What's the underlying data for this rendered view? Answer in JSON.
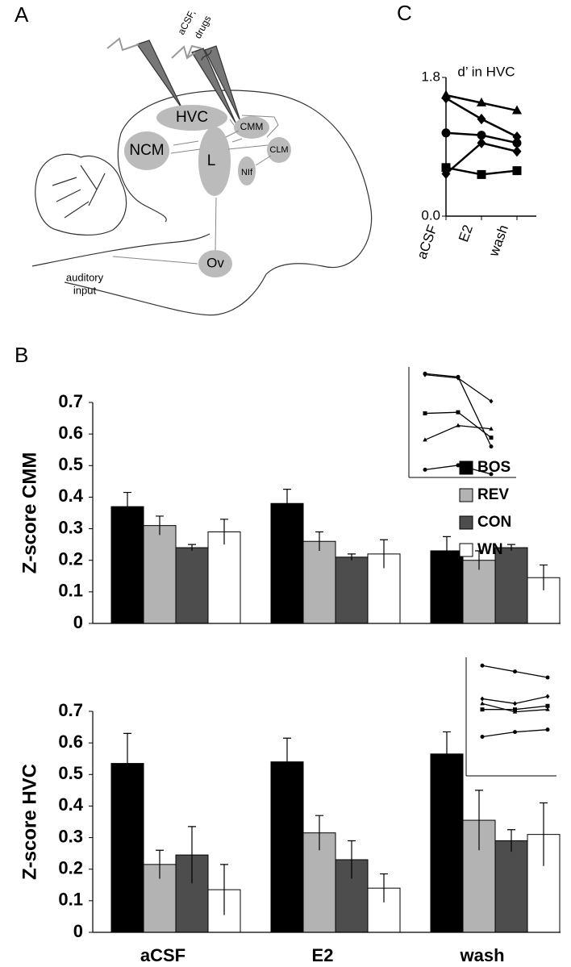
{
  "panel_labels": [
    "A",
    "B",
    "C"
  ],
  "diagram": {
    "labels": {
      "hvc": "HVC",
      "ncm": "NCM",
      "l": "L",
      "cmm": "CMM",
      "clm": "CLM",
      "nif": "NIf",
      "ov": "Ov",
      "auditory": "auditory",
      "input": "input",
      "acsf": "aCSF,",
      "drugs": "drugs"
    }
  },
  "chart_data": [
    {
      "type": "line",
      "title": "d’ in HVC",
      "categories": [
        "aCSF",
        "E2",
        "wash"
      ],
      "ylim": [
        0,
        1.8
      ],
      "yticks": [
        {
          "value": 0,
          "label": "0.0"
        },
        1.8
      ],
      "color": "#000000",
      "series": [
        {
          "marker": "triangle",
          "values": [
            1.57,
            1.47,
            1.37
          ]
        },
        {
          "marker": "diamond",
          "values": [
            1.53,
            1.26,
            1.03
          ]
        },
        {
          "marker": "circle",
          "values": [
            1.08,
            1.05,
            0.95
          ]
        },
        {
          "marker": "diamond",
          "values": [
            0.55,
            0.95,
            0.84
          ]
        },
        {
          "marker": "square",
          "values": [
            0.63,
            0.54,
            0.59
          ]
        }
      ]
    },
    {
      "type": "bar",
      "ylabel": "Z-score CMM",
      "categories": [
        null,
        null,
        null
      ],
      "ylim": [
        0,
        0.7
      ],
      "yticks": [
        0,
        0.1,
        0.2,
        0.3,
        0.4,
        0.5,
        0.6,
        0.7
      ],
      "legend": "right",
      "series": [
        {
          "name": "BOS",
          "color": "#000000",
          "values": [
            0.37,
            0.38,
            0.23
          ],
          "errors": [
            0.045,
            0.045,
            0.045
          ]
        },
        {
          "name": "REV",
          "color": "#b3b3b3",
          "values": [
            0.31,
            0.26,
            0.2
          ],
          "errors": [
            0.03,
            0.03,
            0.03
          ]
        },
        {
          "name": "CON",
          "color": "#4d4d4d",
          "values": [
            0.24,
            0.21,
            0.24
          ],
          "errors": [
            0.01,
            0.01,
            0.01
          ]
        },
        {
          "name": "WN",
          "color": "#ffffff",
          "values": [
            0.29,
            0.22,
            0.145
          ],
          "errors": [
            0.04,
            0.045,
            0.04
          ]
        }
      ]
    },
    {
      "type": "bar",
      "ylabel": "Z-score HVC",
      "categories": [
        "aCSF",
        "E2",
        "wash"
      ],
      "ylim": [
        0,
        0.7
      ],
      "yticks": [
        0,
        0.1,
        0.2,
        0.3,
        0.4,
        0.5,
        0.6,
        0.7
      ],
      "series": [
        {
          "color": "#000000",
          "values": [
            0.535,
            0.54,
            0.565
          ],
          "errors": [
            0.095,
            0.075,
            0.07
          ]
        },
        {
          "color": "#b3b3b3",
          "values": [
            0.215,
            0.315,
            0.355
          ],
          "errors": [
            0.045,
            0.055,
            0.095
          ]
        },
        {
          "color": "#4d4d4d",
          "values": [
            0.245,
            0.23,
            0.29
          ],
          "errors": [
            0.09,
            0.06,
            0.035
          ]
        },
        {
          "color": "#ffffff",
          "values": [
            0.135,
            0.14,
            0.31
          ],
          "errors": [
            0.08,
            0.045,
            0.1
          ]
        }
      ]
    },
    {
      "type": "line",
      "ylim": [
        0,
        1
      ],
      "color": "#000000",
      "series": [
        {
          "marker": "circle",
          "values": [
            0.94,
            0.91,
            0.28
          ]
        },
        {
          "marker": "diamond",
          "values": [
            0.93,
            0.9,
            0.69
          ]
        },
        {
          "marker": "square",
          "values": [
            0.58,
            0.59,
            0.36
          ]
        },
        {
          "marker": "triangle",
          "values": [
            0.34,
            0.47,
            0.44
          ]
        },
        {
          "marker": "circle",
          "values": [
            0.07,
            0.11,
            0.03
          ]
        }
      ]
    },
    {
      "type": "line",
      "ylim": [
        0,
        1
      ],
      "color": "#000000",
      "series": [
        {
          "marker": "circle",
          "values": [
            0.93,
            0.88,
            0.83
          ]
        },
        {
          "marker": "diamond",
          "values": [
            0.65,
            0.61,
            0.67
          ]
        },
        {
          "marker": "triangle",
          "values": [
            0.61,
            0.54,
            0.56
          ]
        },
        {
          "marker": "square",
          "values": [
            0.56,
            0.56,
            0.59
          ]
        },
        {
          "marker": "circle",
          "values": [
            0.33,
            0.37,
            0.39
          ]
        }
      ]
    }
  ]
}
